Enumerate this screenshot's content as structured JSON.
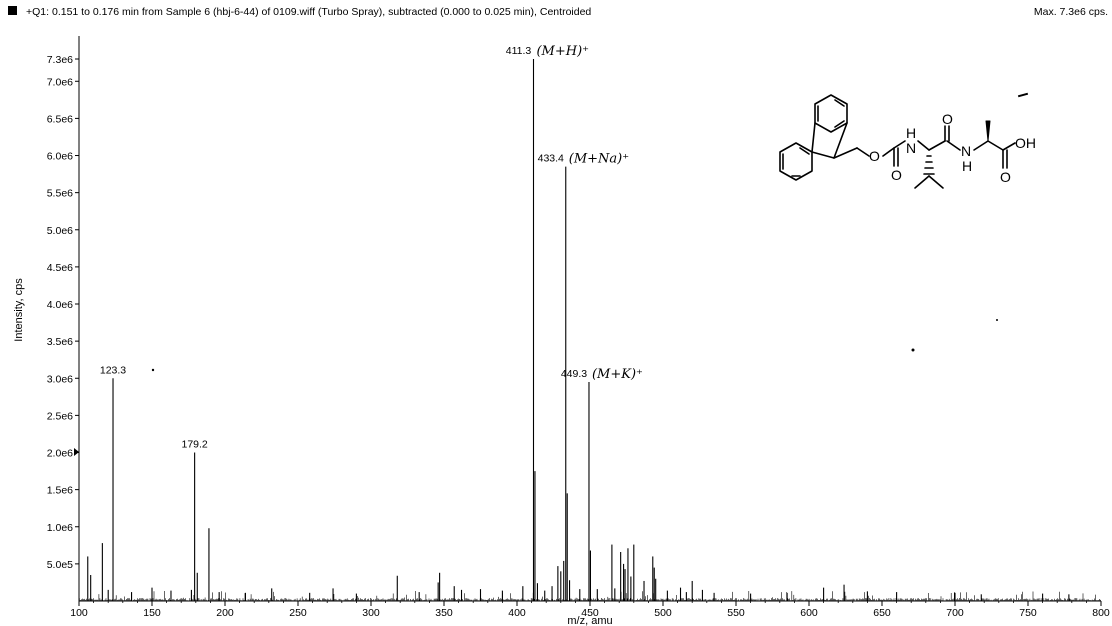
{
  "header": {
    "marker_icon": "square-marker-icon",
    "title": "+Q1: 0.151 to 0.176 min from Sample 6 (hbj-6-44) of 0109.wiff (Turbo Spray), subtracted (0.000 to 0.025 min), Centroided",
    "max_label": "Max. 7.3e6 cps."
  },
  "chart_data": {
    "type": "bar",
    "xlabel": "m/z, amu",
    "ylabel": "Intensity, cps",
    "xlim": [
      100,
      800
    ],
    "ylim": [
      0,
      7300000
    ],
    "xticks": [
      {
        "v": 100,
        "label": "100"
      },
      {
        "v": 150,
        "label": "150"
      },
      {
        "v": 200,
        "label": "200"
      },
      {
        "v": 250,
        "label": "250"
      },
      {
        "v": 300,
        "label": "300"
      },
      {
        "v": 350,
        "label": "350"
      },
      {
        "v": 400,
        "label": "400"
      },
      {
        "v": 450,
        "label": "450"
      },
      {
        "v": 500,
        "label": "500"
      },
      {
        "v": 550,
        "label": "550"
      },
      {
        "v": 600,
        "label": "600"
      },
      {
        "v": 650,
        "label": "650"
      },
      {
        "v": 700,
        "label": "700"
      },
      {
        "v": 750,
        "label": "750"
      },
      {
        "v": 800,
        "label": "800"
      }
    ],
    "yticks": [
      {
        "v": 500000,
        "label": "5.0e5"
      },
      {
        "v": 1000000,
        "label": "1.0e6"
      },
      {
        "v": 1500000,
        "label": "1.5e6"
      },
      {
        "v": 2000000,
        "label": "2.0e6"
      },
      {
        "v": 2500000,
        "label": "2.5e6"
      },
      {
        "v": 3000000,
        "label": "3.0e6"
      },
      {
        "v": 3500000,
        "label": "3.5e6"
      },
      {
        "v": 4000000,
        "label": "4.0e6"
      },
      {
        "v": 4500000,
        "label": "4.5e6"
      },
      {
        "v": 5000000,
        "label": "5.0e6"
      },
      {
        "v": 5500000,
        "label": "5.5e6"
      },
      {
        "v": 6000000,
        "label": "6.0e6"
      },
      {
        "v": 6500000,
        "label": "6.5e6"
      },
      {
        "v": 7000000,
        "label": "7.0e6"
      },
      {
        "v": 7300000,
        "label": "7.3e6"
      }
    ],
    "peaks": [
      {
        "mz": 106.0,
        "i": 600000
      },
      {
        "mz": 108.0,
        "i": 350000
      },
      {
        "mz": 116.0,
        "i": 780000
      },
      {
        "mz": 120.0,
        "i": 150000
      },
      {
        "mz": 123.3,
        "i": 3000000
      },
      {
        "mz": 136.0,
        "i": 120000
      },
      {
        "mz": 150.0,
        "i": 180000
      },
      {
        "mz": 163.0,
        "i": 140000
      },
      {
        "mz": 177.0,
        "i": 150000
      },
      {
        "mz": 179.2,
        "i": 2000000
      },
      {
        "mz": 181.0,
        "i": 380000
      },
      {
        "mz": 189.0,
        "i": 980000
      },
      {
        "mz": 196.0,
        "i": 120000
      },
      {
        "mz": 214.0,
        "i": 110000
      },
      {
        "mz": 232.0,
        "i": 170000
      },
      {
        "mz": 258.0,
        "i": 110000
      },
      {
        "mz": 274.0,
        "i": 170000
      },
      {
        "mz": 290.0,
        "i": 100000
      },
      {
        "mz": 318.0,
        "i": 340000
      },
      {
        "mz": 333.0,
        "i": 120000
      },
      {
        "mz": 346.0,
        "i": 250000
      },
      {
        "mz": 347.0,
        "i": 380000
      },
      {
        "mz": 357.0,
        "i": 200000
      },
      {
        "mz": 362.0,
        "i": 150000
      },
      {
        "mz": 375.0,
        "i": 160000
      },
      {
        "mz": 390.0,
        "i": 140000
      },
      {
        "mz": 404.0,
        "i": 200000
      },
      {
        "mz": 411.3,
        "i": 7300000
      },
      {
        "mz": 412.3,
        "i": 1750000
      },
      {
        "mz": 414.0,
        "i": 240000
      },
      {
        "mz": 419.0,
        "i": 140000
      },
      {
        "mz": 424.0,
        "i": 200000
      },
      {
        "mz": 428.0,
        "i": 470000
      },
      {
        "mz": 430.0,
        "i": 400000
      },
      {
        "mz": 432.0,
        "i": 540000
      },
      {
        "mz": 433.4,
        "i": 5850000
      },
      {
        "mz": 434.4,
        "i": 1450000
      },
      {
        "mz": 436.0,
        "i": 280000
      },
      {
        "mz": 443.0,
        "i": 160000
      },
      {
        "mz": 449.3,
        "i": 2950000
      },
      {
        "mz": 450.3,
        "i": 680000
      },
      {
        "mz": 455.0,
        "i": 160000
      },
      {
        "mz": 465.0,
        "i": 760000
      },
      {
        "mz": 467.0,
        "i": 170000
      },
      {
        "mz": 471.0,
        "i": 660000
      },
      {
        "mz": 473.0,
        "i": 500000
      },
      {
        "mz": 474.0,
        "i": 430000
      },
      {
        "mz": 476.0,
        "i": 710000
      },
      {
        "mz": 478.0,
        "i": 330000
      },
      {
        "mz": 480.0,
        "i": 760000
      },
      {
        "mz": 487.0,
        "i": 270000
      },
      {
        "mz": 493.0,
        "i": 600000
      },
      {
        "mz": 494.0,
        "i": 450000
      },
      {
        "mz": 495.0,
        "i": 300000
      },
      {
        "mz": 503.0,
        "i": 140000
      },
      {
        "mz": 512.0,
        "i": 180000
      },
      {
        "mz": 516.0,
        "i": 120000
      },
      {
        "mz": 520.0,
        "i": 270000
      },
      {
        "mz": 527.0,
        "i": 150000
      },
      {
        "mz": 535.0,
        "i": 110000
      },
      {
        "mz": 560.0,
        "i": 100000
      },
      {
        "mz": 585.0,
        "i": 110000
      },
      {
        "mz": 610.0,
        "i": 180000
      },
      {
        "mz": 624.0,
        "i": 220000
      },
      {
        "mz": 640.0,
        "i": 130000
      },
      {
        "mz": 660.0,
        "i": 120000
      },
      {
        "mz": 700.0,
        "i": 110000
      },
      {
        "mz": 718.0,
        "i": 90000
      },
      {
        "mz": 760.0,
        "i": 100000
      },
      {
        "mz": 778.0,
        "i": 90000
      }
    ],
    "labels": [
      {
        "mz": 123.3,
        "i": 3000000,
        "text": "123.3",
        "note": ""
      },
      {
        "mz": 179.2,
        "i": 2000000,
        "text": "179.2",
        "note": ""
      },
      {
        "mz": 411.3,
        "i": 7300000,
        "text": "411.3",
        "note": "(M+H)⁺"
      },
      {
        "mz": 433.4,
        "i": 5850000,
        "text": "433.4",
        "note": "(M+Na)⁺"
      },
      {
        "mz": 449.3,
        "i": 2950000,
        "text": "449.3",
        "note": "(M+K)⁺"
      }
    ]
  },
  "structure": {
    "atoms": {
      "o_ether": "O",
      "nh1": "H",
      "n1": "N",
      "o_carbamate": "O",
      "o_amide": "O",
      "n2": "N",
      "nh2": "H",
      "oh": "OH",
      "o_acid": "O"
    }
  }
}
